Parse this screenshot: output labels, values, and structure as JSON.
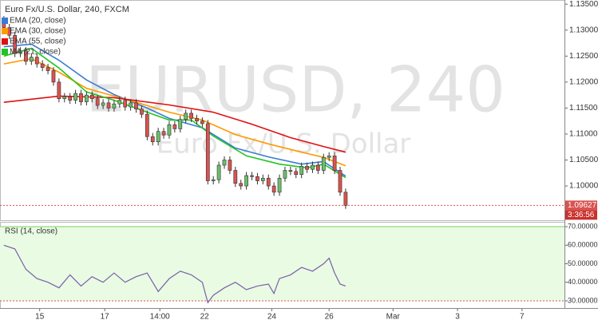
{
  "chart_data": [
    {
      "type": "candlestick",
      "title": "Euro Fx/U.S. Dollar, 240, FXCM",
      "watermark": "EURUSD, 240",
      "watermark_subtitle": "Euro Fx/U.S. Dollar",
      "x": [
        0,
        1,
        2,
        3,
        4,
        5,
        6,
        7,
        8,
        9,
        10,
        11,
        12,
        13,
        14,
        15,
        16,
        17,
        18,
        19,
        20,
        21,
        22,
        23,
        24,
        25,
        26,
        27,
        28,
        29,
        30,
        31,
        32,
        33,
        34,
        35,
        36,
        37,
        38,
        39,
        40,
        41,
        42,
        43,
        44,
        45,
        46,
        47,
        48,
        49,
        50,
        51,
        52,
        53,
        54,
        55,
        56,
        57,
        58,
        59,
        60,
        61,
        62
      ],
      "open": [
        1.132,
        1.1305,
        1.129,
        1.1255,
        1.126,
        1.124,
        1.1248,
        1.1235,
        1.1228,
        1.1222,
        1.12,
        1.1168,
        1.1172,
        1.1165,
        1.1178,
        1.1162,
        1.1175,
        1.1168,
        1.1155,
        1.116,
        1.115,
        1.1158,
        1.1165,
        1.1152,
        1.116,
        1.1148,
        1.1138,
        1.1095,
        1.1085,
        1.1105,
        1.1098,
        1.1118,
        1.111,
        1.1128,
        1.114,
        1.113,
        1.1125,
        1.112,
        1.101,
        1.1012,
        1.104,
        1.105,
        1.103,
        1.1005,
        1.1,
        1.102,
        1.1018,
        1.101,
        1.1015,
        1.1,
        1.0988,
        1.1015,
        1.103,
        1.1028,
        1.1022,
        1.1038,
        1.1032,
        1.104,
        1.103,
        1.1055,
        1.1058,
        1.103,
        1.0988
      ],
      "high": [
        1.1327,
        1.1312,
        1.1297,
        1.1267,
        1.1267,
        1.1255,
        1.1255,
        1.1242,
        1.1235,
        1.1229,
        1.1207,
        1.1179,
        1.1179,
        1.1185,
        1.1185,
        1.1182,
        1.1182,
        1.1175,
        1.1167,
        1.1167,
        1.1165,
        1.1172,
        1.1172,
        1.1167,
        1.1167,
        1.1155,
        1.1145,
        1.1102,
        1.1112,
        1.1112,
        1.1125,
        1.1125,
        1.1135,
        1.1147,
        1.1147,
        1.1137,
        1.1132,
        1.1127,
        1.1019,
        1.1047,
        1.1057,
        1.1057,
        1.1037,
        1.1012,
        1.1027,
        1.1027,
        1.1025,
        1.1022,
        1.1022,
        1.1007,
        1.1022,
        1.1037,
        1.1037,
        1.1035,
        1.1045,
        1.1045,
        1.1047,
        1.1047,
        1.1062,
        1.1065,
        1.1065,
        1.1037,
        1.0995
      ],
      "low": [
        1.1298,
        1.1283,
        1.1248,
        1.1248,
        1.1233,
        1.1233,
        1.1228,
        1.1221,
        1.1215,
        1.1193,
        1.1161,
        1.1161,
        1.1158,
        1.1158,
        1.1155,
        1.1155,
        1.1161,
        1.1148,
        1.1148,
        1.1143,
        1.1143,
        1.1151,
        1.1145,
        1.1145,
        1.1141,
        1.1131,
        1.1088,
        1.1078,
        1.1078,
        1.1091,
        1.1091,
        1.1103,
        1.1103,
        1.1121,
        1.1123,
        1.1118,
        1.1113,
        1.1003,
        1.1003,
        1.1005,
        1.1033,
        1.1023,
        1.0998,
        1.0993,
        1.0993,
        1.1011,
        1.1003,
        1.1003,
        1.0993,
        1.0981,
        1.0981,
        1.1008,
        1.1021,
        1.1015,
        1.1015,
        1.1025,
        1.1025,
        1.1023,
        1.1023,
        1.1048,
        1.1023,
        1.0981,
        1.0956
      ],
      "close": [
        1.1305,
        1.129,
        1.1255,
        1.126,
        1.124,
        1.1248,
        1.1235,
        1.1228,
        1.1222,
        1.12,
        1.1168,
        1.1172,
        1.1165,
        1.1178,
        1.1162,
        1.1175,
        1.1168,
        1.1155,
        1.116,
        1.115,
        1.1158,
        1.1165,
        1.1152,
        1.116,
        1.1148,
        1.1138,
        1.1095,
        1.1085,
        1.1105,
        1.1098,
        1.1118,
        1.111,
        1.1128,
        1.114,
        1.113,
        1.1125,
        1.112,
        1.101,
        1.1012,
        1.104,
        1.105,
        1.103,
        1.1005,
        1.1,
        1.102,
        1.1018,
        1.101,
        1.1015,
        1.1,
        1.0988,
        1.1015,
        1.103,
        1.1028,
        1.1022,
        1.1038,
        1.1032,
        1.104,
        1.103,
        1.1055,
        1.1058,
        1.103,
        1.0988,
        1.09627
      ],
      "up_color": "#6abf69",
      "down_color": "#d9534f",
      "series": [
        {
          "name": "EMA (20, close)",
          "color": "#3a7bd5",
          "x": [
            0,
            5,
            10,
            15,
            20,
            26,
            30,
            36,
            42,
            48,
            54,
            58,
            62
          ],
          "values": [
            1.1268,
            1.1273,
            1.1242,
            1.1204,
            1.1176,
            1.115,
            1.113,
            1.1112,
            1.1073,
            1.1056,
            1.1042,
            1.1047,
            1.1019
          ]
        },
        {
          "name": "EMA (30, close)",
          "color": "#ff9900",
          "x": [
            0,
            5,
            10,
            15,
            20,
            25,
            30,
            36,
            42,
            48,
            54,
            58,
            62
          ],
          "values": [
            1.1235,
            1.1245,
            1.1219,
            1.1188,
            1.1173,
            1.1158,
            1.1142,
            1.1127,
            1.1099,
            1.1081,
            1.1065,
            1.1055,
            1.1039
          ]
        },
        {
          "name": "EMA (55, close)",
          "color": "#dd1111",
          "x": [
            0,
            10,
            20,
            30,
            38,
            45,
            52,
            58,
            62
          ],
          "values": [
            1.1161,
            1.1173,
            1.117,
            1.1156,
            1.1142,
            1.1119,
            1.1093,
            1.1076,
            1.1065
          ]
        },
        {
          "name": "MA (21, close)",
          "color": "#22c422",
          "x": [
            0,
            5,
            10,
            15,
            20,
            26,
            30,
            34,
            38,
            44,
            50,
            55,
            58,
            62
          ],
          "values": [
            1.125,
            1.1265,
            1.1227,
            1.1181,
            1.1165,
            1.1142,
            1.1127,
            1.1127,
            1.1096,
            1.1058,
            1.1042,
            1.1035,
            1.1042,
            1.1016
          ]
        }
      ],
      "last_price": {
        "value": 1.09627,
        "label": "1.09627"
      },
      "countdown": "3:36:56",
      "xlim": [
        -0.7,
        101.7
      ],
      "ylim": [
        1.0934,
        1.1358
      ],
      "yticks": [
        {
          "value": 1.135,
          "label": "1.13500"
        },
        {
          "value": 1.13,
          "label": "1.13000"
        },
        {
          "value": 1.125,
          "label": "1.12500"
        },
        {
          "value": 1.12,
          "label": "1.12000"
        },
        {
          "value": 1.115,
          "label": "1.11500"
        },
        {
          "value": 1.11,
          "label": "1.11000"
        },
        {
          "value": 1.105,
          "label": "1.10500"
        },
        {
          "value": 1.1,
          "label": "1.10000"
        }
      ]
    },
    {
      "type": "line",
      "title": "RSI (14, close)",
      "color": "#7a5fa8",
      "x": [
        0,
        2,
        4,
        6,
        8,
        10,
        12,
        14,
        16,
        18,
        20,
        22,
        24,
        26,
        28,
        30,
        32,
        34,
        36,
        37,
        38,
        40,
        42,
        44,
        46,
        48,
        49,
        50,
        52,
        54,
        56,
        58,
        59,
        60,
        61,
        62
      ],
      "values": [
        60,
        58,
        47,
        42,
        40,
        37,
        44,
        38,
        43,
        40,
        45,
        40,
        43,
        45,
        35,
        42,
        46,
        44,
        40,
        29,
        33,
        37,
        40,
        36,
        38,
        39,
        34,
        42,
        44,
        48,
        46,
        50,
        53,
        45,
        39,
        38
      ],
      "upper_band": 70,
      "lower_band": 30,
      "xlim": [
        -0.7,
        101.7
      ],
      "ylim": [
        26.1,
        72.6
      ],
      "yticks": [
        {
          "value": 70,
          "label": "70.00000"
        },
        {
          "value": 60,
          "label": "60.00000"
        },
        {
          "value": 50,
          "label": "50.00000"
        },
        {
          "value": 40,
          "label": "40.00000"
        },
        {
          "value": 30,
          "label": "30.00000"
        }
      ],
      "xticks": [
        {
          "value": 6.5,
          "label": "15"
        },
        {
          "value": 18.3,
          "label": "17"
        },
        {
          "value": 28.3,
          "label": "14:00"
        },
        {
          "value": 36.4,
          "label": "22"
        },
        {
          "value": 48.6,
          "label": "24"
        },
        {
          "value": 59,
          "label": "26"
        },
        {
          "value": 70.6,
          "label": "Mar"
        },
        {
          "value": 82.3,
          "label": "3"
        },
        {
          "value": 94,
          "label": "7"
        }
      ]
    }
  ]
}
